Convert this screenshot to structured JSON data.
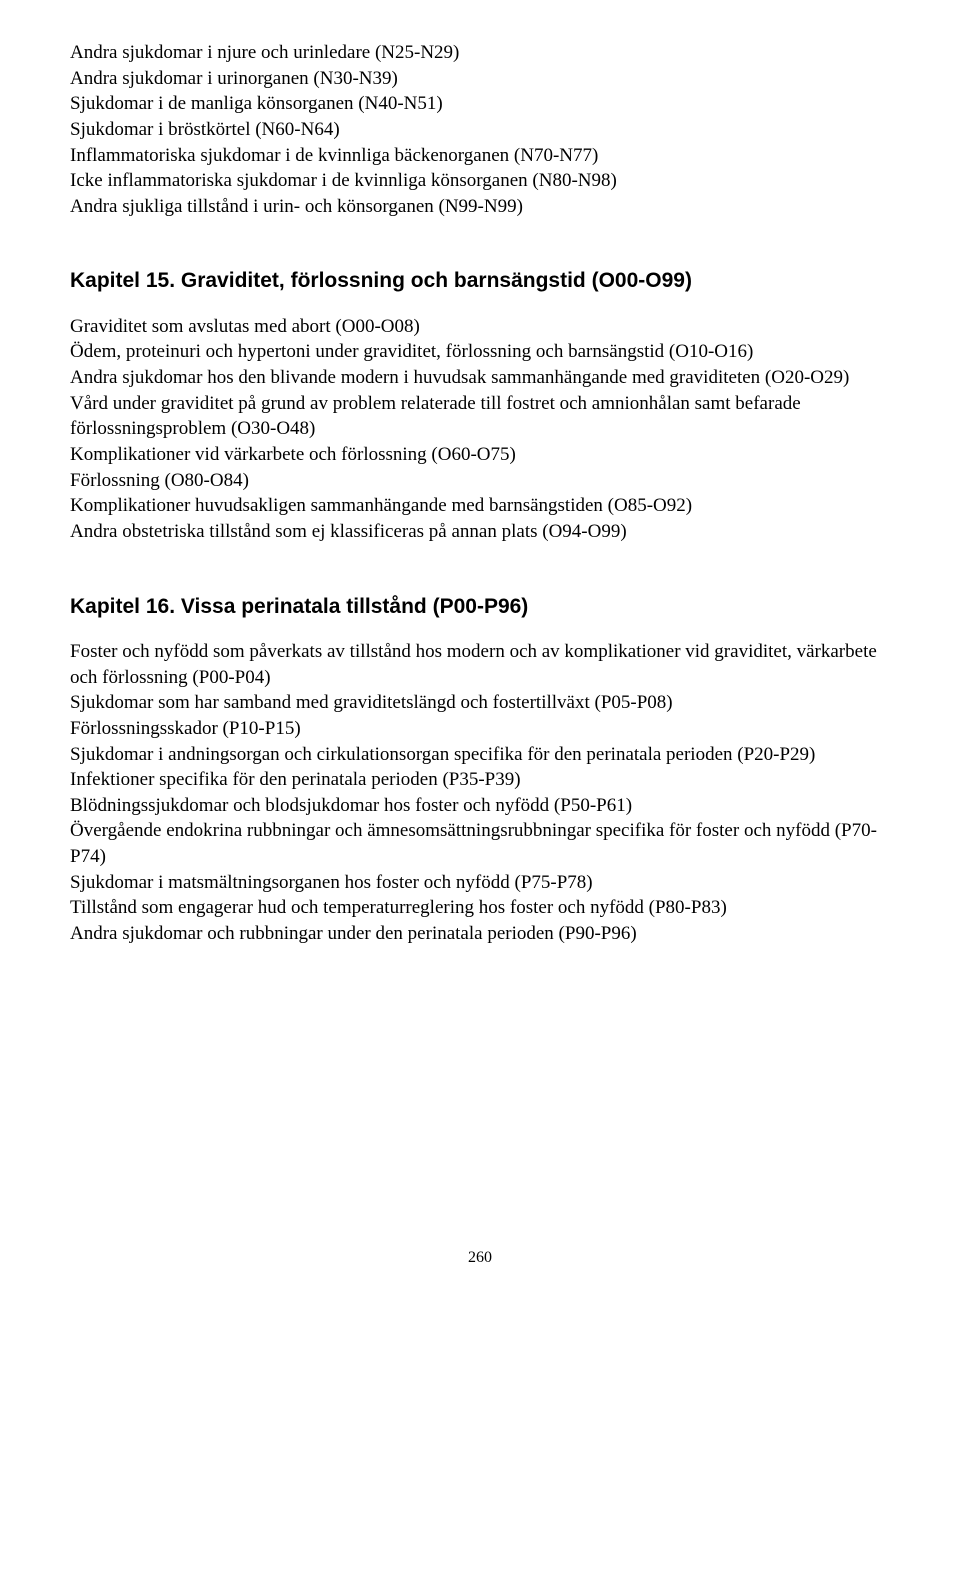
{
  "topBlock": {
    "lines": [
      "Andra sjukdomar i njure och urinledare (N25-N29)",
      "Andra sjukdomar i urinorganen (N30-N39)",
      "Sjukdomar i de manliga könsorganen (N40-N51)",
      "Sjukdomar i bröstkörtel (N60-N64)",
      "Inflammatoriska sjukdomar i de kvinnliga bäckenorganen (N70-N77)",
      "Icke inflammatoriska sjukdomar i de kvinnliga könsorganen (N80-N98)",
      "Andra sjukliga tillstånd i urin- och könsorganen (N99-N99)"
    ]
  },
  "chapter15": {
    "heading": "Kapitel 15. Graviditet, förlossning och barnsängstid (O00-O99)",
    "lines": [
      "Graviditet som avslutas med abort (O00-O08)",
      "Ödem, proteinuri och hypertoni under graviditet, förlossning och barnsängstid (O10-O16)",
      "Andra sjukdomar hos den blivande modern i huvudsak sammanhängande med graviditeten (O20-O29)",
      "Vård under graviditet på grund av problem relaterade till fostret och amnionhålan samt befarade förlossningsproblem (O30-O48)",
      "Komplikationer vid värkarbete och förlossning (O60-O75)",
      "Förlossning (O80-O84)",
      "Komplikationer huvudsakligen sammanhängande med barnsängstiden (O85-O92)",
      "Andra obstetriska tillstånd som ej klassificeras på annan plats (O94-O99)"
    ]
  },
  "chapter16": {
    "heading": "Kapitel 16. Vissa perinatala tillstånd (P00-P96)",
    "lines": [
      "Foster och nyfödd som påverkats av tillstånd hos modern och av komplikationer vid graviditet, värkarbete och förlossning (P00-P04)",
      "Sjukdomar som har samband med graviditetslängd och fostertillväxt (P05-P08)",
      "Förlossningsskador (P10-P15)",
      "Sjukdomar i andningsorgan och cirkulationsorgan specifika för den perinatala perioden (P20-P29)",
      "Infektioner specifika för den perinatala perioden (P35-P39)",
      "Blödningssjukdomar och blodsjukdomar hos foster och nyfödd (P50-P61)",
      "Övergående endokrina rubbningar och ämnesomsättningsrubbningar specifika för foster och nyfödd (P70-P74)",
      "Sjukdomar i matsmältningsorganen hos foster och nyfödd (P75-P78)",
      "Tillstånd som engagerar hud och temperaturreglering hos foster och nyfödd (P80-P83)",
      "Andra sjukdomar och rubbningar under den perinatala perioden (P90-P96)"
    ]
  },
  "pageNumber": "260"
}
